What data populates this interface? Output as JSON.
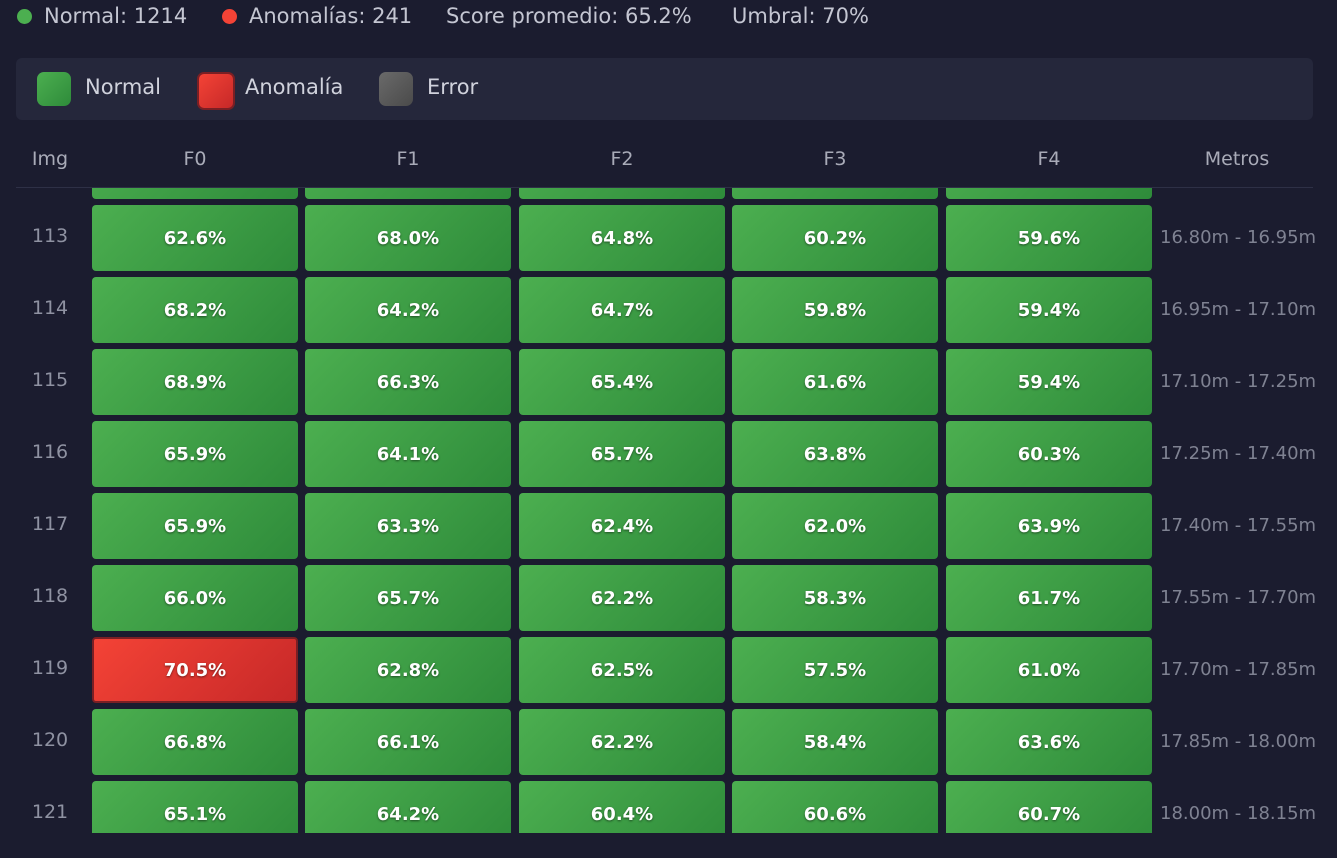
{
  "stats": {
    "normal": "Normal: 1214",
    "anomalies": "Anomalías: 241",
    "score": "Score promedio: 65.2%",
    "threshold": "Umbral: 70%"
  },
  "legend": [
    {
      "label": "Normal",
      "state": "normal"
    },
    {
      "label": "Anomalía",
      "state": "anomaly"
    },
    {
      "label": "Error",
      "state": "error"
    }
  ],
  "table": {
    "headers": [
      "Img",
      "F0",
      "F1",
      "F2",
      "F3",
      "F4",
      "Metros"
    ],
    "rows": [
      {
        "img": "113",
        "cells": [
          {
            "text": "62.6%",
            "state": "normal"
          },
          {
            "text": "68.0%",
            "state": "normal"
          },
          {
            "text": "64.8%",
            "state": "normal"
          },
          {
            "text": "60.2%",
            "state": "normal"
          },
          {
            "text": "59.6%",
            "state": "normal"
          }
        ],
        "metros": "16.80m - 16.95m"
      },
      {
        "img": "114",
        "cells": [
          {
            "text": "68.2%",
            "state": "normal"
          },
          {
            "text": "64.2%",
            "state": "normal"
          },
          {
            "text": "64.7%",
            "state": "normal"
          },
          {
            "text": "59.8%",
            "state": "normal"
          },
          {
            "text": "59.4%",
            "state": "normal"
          }
        ],
        "metros": "16.95m - 17.10m"
      },
      {
        "img": "115",
        "cells": [
          {
            "text": "68.9%",
            "state": "normal"
          },
          {
            "text": "66.3%",
            "state": "normal"
          },
          {
            "text": "65.4%",
            "state": "normal"
          },
          {
            "text": "61.6%",
            "state": "normal"
          },
          {
            "text": "59.4%",
            "state": "normal"
          }
        ],
        "metros": "17.10m - 17.25m"
      },
      {
        "img": "116",
        "cells": [
          {
            "text": "65.9%",
            "state": "normal"
          },
          {
            "text": "64.1%",
            "state": "normal"
          },
          {
            "text": "65.7%",
            "state": "normal"
          },
          {
            "text": "63.8%",
            "state": "normal"
          },
          {
            "text": "60.3%",
            "state": "normal"
          }
        ],
        "metros": "17.25m - 17.40m"
      },
      {
        "img": "117",
        "cells": [
          {
            "text": "65.9%",
            "state": "normal"
          },
          {
            "text": "63.3%",
            "state": "normal"
          },
          {
            "text": "62.4%",
            "state": "normal"
          },
          {
            "text": "62.0%",
            "state": "normal"
          },
          {
            "text": "63.9%",
            "state": "normal"
          }
        ],
        "metros": "17.40m - 17.55m"
      },
      {
        "img": "118",
        "cells": [
          {
            "text": "66.0%",
            "state": "normal"
          },
          {
            "text": "65.7%",
            "state": "normal"
          },
          {
            "text": "62.2%",
            "state": "normal"
          },
          {
            "text": "58.3%",
            "state": "normal"
          },
          {
            "text": "61.7%",
            "state": "normal"
          }
        ],
        "metros": "17.55m - 17.70m"
      },
      {
        "img": "119",
        "cells": [
          {
            "text": "70.5%",
            "state": "anomaly"
          },
          {
            "text": "62.8%",
            "state": "normal"
          },
          {
            "text": "62.5%",
            "state": "normal"
          },
          {
            "text": "57.5%",
            "state": "normal"
          },
          {
            "text": "61.0%",
            "state": "normal"
          }
        ],
        "metros": "17.70m - 17.85m"
      },
      {
        "img": "120",
        "cells": [
          {
            "text": "66.8%",
            "state": "normal"
          },
          {
            "text": "66.1%",
            "state": "normal"
          },
          {
            "text": "62.2%",
            "state": "normal"
          },
          {
            "text": "58.4%",
            "state": "normal"
          },
          {
            "text": "63.6%",
            "state": "normal"
          }
        ],
        "metros": "17.85m - 18.00m"
      },
      {
        "img": "121",
        "cells": [
          {
            "text": "65.1%",
            "state": "normal"
          },
          {
            "text": "64.2%",
            "state": "normal"
          },
          {
            "text": "60.4%",
            "state": "normal"
          },
          {
            "text": "60.6%",
            "state": "normal"
          },
          {
            "text": "60.7%",
            "state": "normal"
          }
        ],
        "metros": "18.00m - 18.15m"
      }
    ]
  }
}
